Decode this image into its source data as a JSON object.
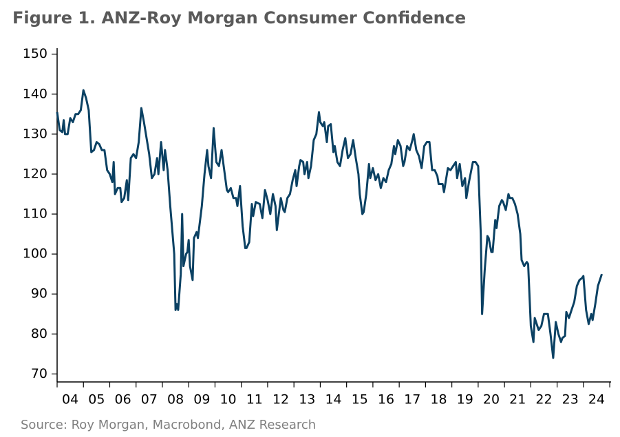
{
  "chart_data": {
    "type": "line",
    "title": "Figure 1. ANZ-Roy Morgan Consumer Confidence",
    "source": "Source: Roy Morgan, Macrobond, ANZ Research",
    "xlim": [
      2004,
      2025.05
    ],
    "ylim": [
      68,
      151.5
    ],
    "yticks": [
      70,
      80,
      90,
      100,
      110,
      120,
      130,
      140,
      150
    ],
    "xticks": [
      {
        "value": 2004.5,
        "label": "04"
      },
      {
        "value": 2005.5,
        "label": "05"
      },
      {
        "value": 2006.5,
        "label": "06"
      },
      {
        "value": 2007.5,
        "label": "07"
      },
      {
        "value": 2008.5,
        "label": "08"
      },
      {
        "value": 2009.5,
        "label": "09"
      },
      {
        "value": 2010.5,
        "label": "10"
      },
      {
        "value": 2011.5,
        "label": "11"
      },
      {
        "value": 2012.5,
        "label": "12"
      },
      {
        "value": 2013.5,
        "label": "13"
      },
      {
        "value": 2014.5,
        "label": "14"
      },
      {
        "value": 2015.5,
        "label": "15"
      },
      {
        "value": 2016.5,
        "label": "16"
      },
      {
        "value": 2017.5,
        "label": "17"
      },
      {
        "value": 2018.5,
        "label": "18"
      },
      {
        "value": 2019.5,
        "label": "19"
      },
      {
        "value": 2020.5,
        "label": "20"
      },
      {
        "value": 2021.5,
        "label": "21"
      },
      {
        "value": 2022.5,
        "label": "22"
      },
      {
        "value": 2023.5,
        "label": "23"
      },
      {
        "value": 2024.5,
        "label": "24"
      }
    ],
    "color": "#0b4163",
    "x": [
      2004.0,
      2004.1,
      2004.2,
      2004.25,
      2004.3,
      2004.4,
      2004.5,
      2004.6,
      2004.7,
      2004.8,
      2004.9,
      2005.0,
      2005.1,
      2005.2,
      2005.3,
      2005.4,
      2005.5,
      2005.6,
      2005.7,
      2005.8,
      2005.9,
      2006.0,
      2006.1,
      2006.15,
      2006.2,
      2006.3,
      2006.4,
      2006.45,
      2006.55,
      2006.65,
      2006.7,
      2006.8,
      2006.9,
      2007.0,
      2007.1,
      2007.2,
      2007.3,
      2007.4,
      2007.5,
      2007.6,
      2007.7,
      2007.8,
      2007.85,
      2007.95,
      2008.05,
      2008.1,
      2008.2,
      2008.3,
      2008.45,
      2008.5,
      2008.55,
      2008.6,
      2008.7,
      2008.75,
      2008.8,
      2008.9,
      2008.95,
      2009.0,
      2009.05,
      2009.15,
      2009.2,
      2009.3,
      2009.35,
      2009.5,
      2009.6,
      2009.7,
      2009.75,
      2009.85,
      2009.95,
      2010.0,
      2010.05,
      2010.15,
      2010.25,
      2010.3,
      2010.45,
      2010.5,
      2010.6,
      2010.7,
      2010.8,
      2010.85,
      2010.95,
      2011.05,
      2011.15,
      2011.2,
      2011.3,
      2011.4,
      2011.45,
      2011.55,
      2011.7,
      2011.8,
      2011.9,
      2012.0,
      2012.1,
      2012.2,
      2012.3,
      2012.35,
      2012.5,
      2012.6,
      2012.65,
      2012.75,
      2012.85,
      2012.95,
      2013.05,
      2013.1,
      2013.2,
      2013.25,
      2013.35,
      2013.4,
      2013.5,
      2013.55,
      2013.65,
      2013.75,
      2013.85,
      2013.95,
      2014.0,
      2014.1,
      2014.15,
      2014.25,
      2014.3,
      2014.4,
      2014.5,
      2014.55,
      2014.65,
      2014.75,
      2014.85,
      2014.95,
      2015.05,
      2015.15,
      2015.25,
      2015.35,
      2015.45,
      2015.5,
      2015.6,
      2015.65,
      2015.75,
      2015.85,
      2015.9,
      2016.0,
      2016.1,
      2016.2,
      2016.3,
      2016.4,
      2016.5,
      2016.6,
      2016.7,
      2016.8,
      2016.85,
      2016.95,
      2017.05,
      2017.15,
      2017.2,
      2017.3,
      2017.4,
      2017.5,
      2017.55,
      2017.65,
      2017.75,
      2017.85,
      2017.95,
      2018.05,
      2018.15,
      2018.25,
      2018.35,
      2018.45,
      2018.5,
      2018.65,
      2018.7,
      2018.85,
      2018.95,
      2019.05,
      2019.15,
      2019.2,
      2019.3,
      2019.4,
      2019.5,
      2019.55,
      2019.65,
      2019.8,
      2019.9,
      2020.0,
      2020.1,
      2020.15,
      2020.25,
      2020.35,
      2020.4,
      2020.5,
      2020.55,
      2020.65,
      2020.7,
      2020.8,
      2020.9,
      2020.95,
      2021.05,
      2021.15,
      2021.2,
      2021.3,
      2021.4,
      2021.5,
      2021.6,
      2021.65,
      2021.75,
      2021.85,
      2021.9,
      2022.0,
      2022.1,
      2022.15,
      2022.3,
      2022.4,
      2022.5,
      2022.65,
      2022.75,
      2022.85,
      2022.95,
      2023.05,
      2023.15,
      2023.2,
      2023.3,
      2023.35,
      2023.45,
      2023.55,
      2023.65,
      2023.75,
      2023.85,
      2023.95,
      2024.0,
      2024.1,
      2024.2,
      2024.3,
      2024.35,
      2024.45,
      2024.55,
      2024.7
    ],
    "values": [
      135.5,
      131,
      130.5,
      133.5,
      130,
      130,
      134,
      133,
      135,
      135,
      136,
      141,
      139,
      136,
      125.5,
      126,
      128,
      127.5,
      126,
      126,
      121,
      120,
      118,
      123,
      115,
      116.5,
      116.5,
      113,
      114,
      118.5,
      113.5,
      124,
      125,
      124,
      128,
      136.5,
      133,
      129,
      125,
      119,
      120,
      124,
      120,
      128,
      121,
      126,
      121,
      112,
      100,
      86,
      87.5,
      86,
      95,
      110,
      97,
      100,
      100.5,
      103.5,
      97,
      93.5,
      104,
      105.5,
      104,
      112,
      120,
      126,
      122,
      119,
      131.5,
      127,
      123,
      122,
      126,
      123.5,
      116,
      115.5,
      116.5,
      114,
      114,
      112,
      117,
      107,
      101.5,
      101.5,
      103,
      112.5,
      109.5,
      113,
      112.5,
      109,
      116,
      113.5,
      110,
      115,
      112,
      106,
      114,
      111,
      110.5,
      114,
      115,
      118.5,
      121,
      117,
      122,
      123.5,
      123,
      120,
      123,
      119,
      122,
      128.5,
      130,
      135.5,
      133,
      132,
      133,
      128,
      132,
      132.5,
      125.5,
      127,
      123,
      122,
      126,
      129,
      124,
      125,
      128.5,
      124,
      120,
      115,
      110,
      110.5,
      115,
      122.5,
      119,
      121.5,
      118.5,
      120,
      116.5,
      119,
      118,
      121,
      122.5,
      127,
      125,
      128.5,
      127,
      122,
      123,
      127,
      126,
      128.5,
      130,
      126,
      124.5,
      121.5,
      127,
      128,
      128,
      121,
      121,
      119.5,
      117.5,
      117.5,
      115.5,
      121.5,
      121,
      122,
      123,
      119,
      122.5,
      117,
      119,
      114,
      118,
      123,
      123,
      122,
      105,
      85,
      96,
      104.5,
      104,
      100.5,
      100.5,
      108.5,
      106.5,
      112,
      113.5,
      113,
      111,
      115,
      114,
      114,
      112.5,
      110,
      105,
      98.5,
      97,
      98,
      97.5,
      82,
      78,
      84,
      81,
      82,
      85,
      85,
      80,
      74,
      83,
      80,
      78,
      79,
      79.5,
      85.5,
      84,
      86,
      88,
      92,
      93.5,
      94,
      94.5,
      86,
      82.5,
      85,
      83.5,
      87.5,
      92,
      95
    ]
  }
}
